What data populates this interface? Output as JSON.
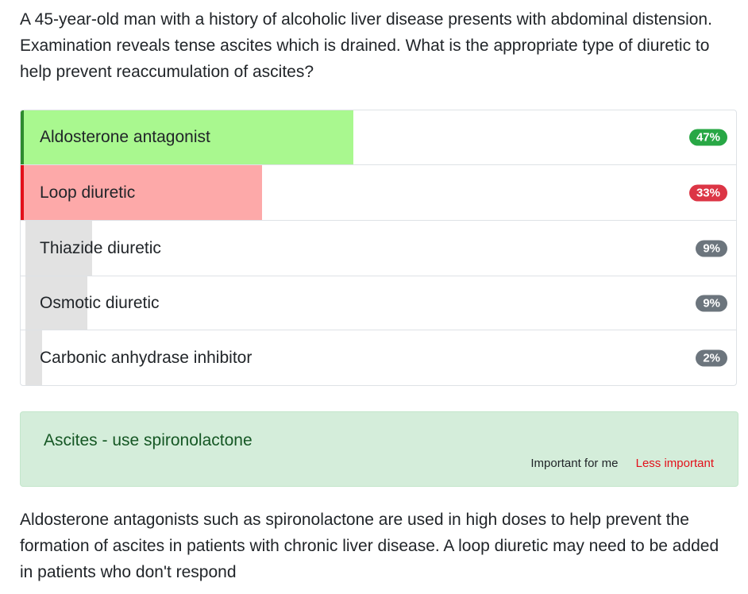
{
  "question": "A 45-year-old man with a history of alcoholic liver disease presents with abdominal distension. Examination reveals tense ascites which is drained. What is the appropriate type of diuretic to help prevent reaccumulation of ascites?",
  "answers": [
    {
      "label": "Aldosterone antagonist",
      "percent_text": "47%",
      "percent": 47,
      "status": "correct"
    },
    {
      "label": "Loop diuretic",
      "percent_text": "33%",
      "percent": 33,
      "status": "incorrect"
    },
    {
      "label": "Thiazide diuretic",
      "percent_text": "9%",
      "percent": 9,
      "status": "neutral"
    },
    {
      "label": "Osmotic diuretic",
      "percent_text": "9%",
      "percent": 9,
      "status": "neutral"
    },
    {
      "label": "Carbonic anhydrase inhibitor",
      "percent_text": "2%",
      "percent": 2,
      "status": "neutral"
    }
  ],
  "note": {
    "title": "Ascites - use spironolactone",
    "important_label": "Important for me",
    "less_important_label": "Less important"
  },
  "explanation": "Aldosterone antagonists such as spironolactone are used in high doses to help prevent the formation of ascites in patients with chronic liver disease. A loop diuretic may need to be added in patients who don't respond",
  "colors": {
    "correct_fill": "#a9f88f",
    "incorrect_fill": "#fda9a9",
    "neutral_fill": "#e2e2e2",
    "correct_badge": "#28a745",
    "incorrect_badge": "#dc3545",
    "neutral_badge": "#6c757d",
    "note_background": "#d4edda",
    "note_text": "#155724",
    "less_important": "#e3101a"
  }
}
